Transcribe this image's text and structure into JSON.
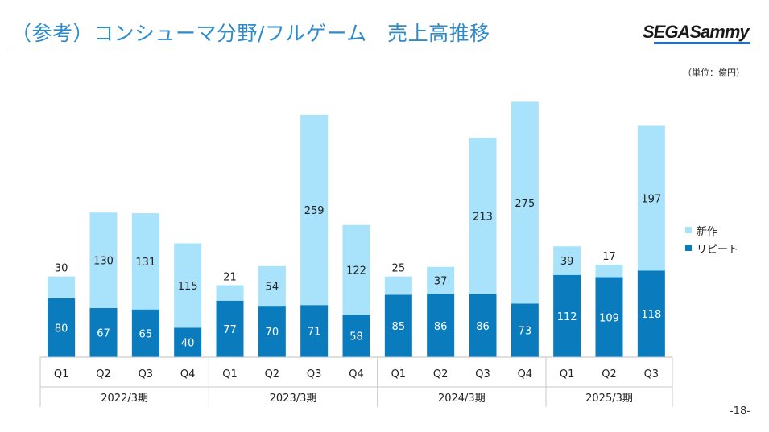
{
  "page": {
    "title": "（参考）コンシューマ分野/フルゲーム　売上高推移",
    "logo_text": "SEGASammy",
    "unit_label": "（単位：億円）",
    "page_number": "-18-"
  },
  "colors": {
    "title": "#2e8bc9",
    "repeat": "#0a7bbd",
    "new": "#a9e2fb",
    "logo_bar": "#1d6fd1"
  },
  "chart_data": {
    "type": "bar",
    "stacked": true,
    "categories": [
      "Q1",
      "Q2",
      "Q3",
      "Q4",
      "Q1",
      "Q2",
      "Q3",
      "Q4",
      "Q1",
      "Q2",
      "Q3",
      "Q4",
      "Q1",
      "Q2",
      "Q3"
    ],
    "groups": [
      {
        "label": "2022/3期",
        "count": 4
      },
      {
        "label": "2023/3期",
        "count": 4
      },
      {
        "label": "2024/3期",
        "count": 4
      },
      {
        "label": "2025/3期",
        "count": 3
      }
    ],
    "series": [
      {
        "name": "リピート",
        "values": [
          80,
          67,
          65,
          40,
          77,
          70,
          71,
          58,
          85,
          86,
          86,
          73,
          112,
          109,
          118
        ]
      },
      {
        "name": "新作",
        "values": [
          30,
          130,
          131,
          115,
          21,
          54,
          259,
          122,
          25,
          37,
          213,
          275,
          39,
          17,
          197
        ]
      }
    ],
    "ylim": [
      0,
      350
    ],
    "legend_position": "right"
  }
}
